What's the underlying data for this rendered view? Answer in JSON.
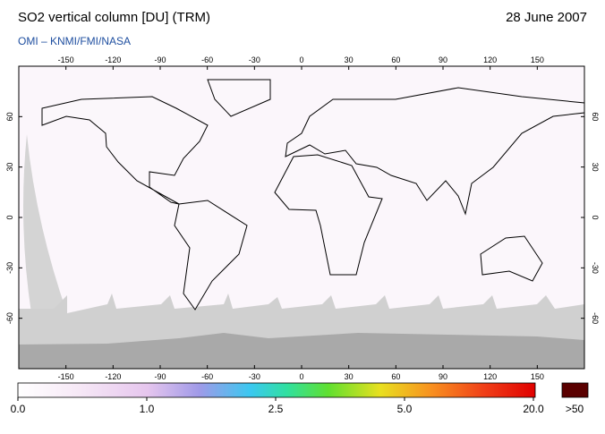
{
  "header": {
    "title": "SO2 vertical column [DU] (TRM)",
    "date": "28 June 2007",
    "subtitle": "OMI  –  KNMI/FMI/NASA"
  },
  "map": {
    "lon_range": [
      -180,
      180
    ],
    "lat_range": [
      -90,
      90
    ],
    "lon_ticks": [
      -150,
      -120,
      -90,
      -60,
      -30,
      0,
      30,
      60,
      90,
      120,
      150
    ],
    "lat_ticks": [
      60,
      30,
      0,
      -30,
      -60
    ]
  },
  "colorbar": {
    "ticks": [
      {
        "value": 0,
        "label": "0.0"
      },
      {
        "value": 1,
        "label": "1.0"
      },
      {
        "value": 2.5,
        "label": "2.5"
      },
      {
        "value": 5,
        "label": "5.0"
      },
      {
        "value": 20,
        "label": "20.0"
      }
    ],
    "over_label": ">50"
  }
}
